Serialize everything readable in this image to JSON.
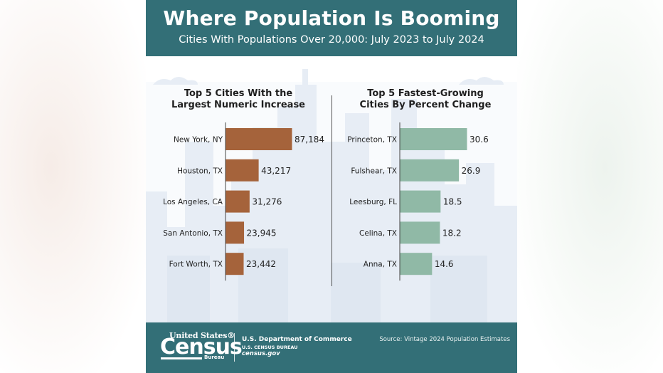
{
  "header": {
    "title": "Where Population Is Booming",
    "subtitle": "Cities With Populations Over 20,000: July 2023 to July 2024"
  },
  "colors": {
    "header_bg": "#336f77",
    "left_bar": "#a5633b",
    "right_bar": "#90b9a6",
    "skyline": "#e6ecf4"
  },
  "chart_data": [
    {
      "type": "bar",
      "orientation": "horizontal",
      "title_lines": [
        "Top 5 Cities With the",
        "Largest Numeric Increase"
      ],
      "categories": [
        "New York, NY",
        "Houston, TX",
        "Los Angeles, CA",
        "San Antonio, TX",
        "Fort Worth, TX"
      ],
      "values": [
        87184,
        43217,
        31276,
        23945,
        23442
      ],
      "labels": [
        "87,184",
        "43,217",
        "31,276",
        "23,945",
        "23,442"
      ],
      "xlim": [
        0,
        87184
      ]
    },
    {
      "type": "bar",
      "orientation": "horizontal",
      "title_lines": [
        "Top 5 Fastest-Growing",
        "Cities By Percent Change"
      ],
      "categories": [
        "Princeton, TX",
        "Fulshear, TX",
        "Leesburg, FL",
        "Celina, TX",
        "Anna, TX"
      ],
      "values": [
        30.6,
        26.9,
        18.5,
        18.2,
        14.6
      ],
      "labels": [
        "30.6",
        "26.9",
        "18.5",
        "18.2",
        "14.6"
      ],
      "xlim": [
        0,
        30.6
      ]
    }
  ],
  "footer": {
    "logo_top": "United States®",
    "logo_main": "Census",
    "logo_bureau": "Bureau",
    "department": "U.S. Department of Commerce",
    "bureau": "U.S. CENSUS BUREAU",
    "website": "census.gov",
    "source": "Source: Vintage 2024 Population Estimates"
  }
}
